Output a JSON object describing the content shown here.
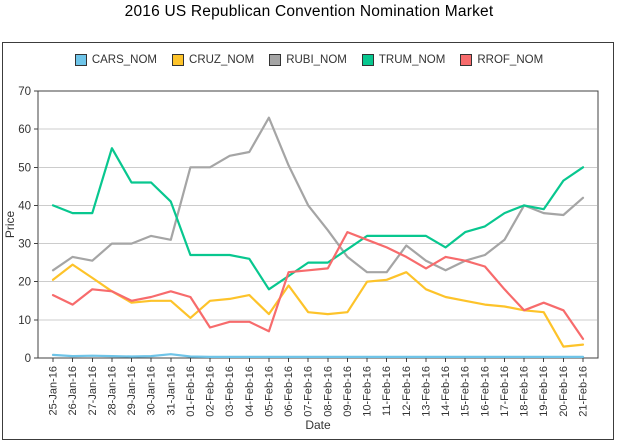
{
  "chart_data": {
    "type": "line",
    "title": "2016 US Republican Convention Nomination Market",
    "xlabel": "Date",
    "ylabel": "Price",
    "ylim": [
      0,
      70
    ],
    "ytick_step": 10,
    "grid": "horizontal",
    "legend_position": "top",
    "x_categories": [
      "25-Jan-16",
      "26-Jan-16",
      "27-Jan-16",
      "28-Jan-16",
      "29-Jan-16",
      "30-Jan-16",
      "31-Jan-16",
      "01-Feb-16",
      "02-Feb-16",
      "03-Feb-16",
      "04-Feb-16",
      "05-Feb-16",
      "06-Feb-16",
      "07-Feb-16",
      "08-Feb-16",
      "09-Feb-16",
      "10-Feb-16",
      "11-Feb-16",
      "12-Feb-16",
      "13-Feb-16",
      "14-Feb-16",
      "15-Feb-16",
      "16-Feb-16",
      "17-Feb-16",
      "18-Feb-16",
      "19-Feb-16",
      "20-Feb-16",
      "21-Feb-16"
    ],
    "series": [
      {
        "name": "CARS_NOM",
        "color": "#6ec4e8",
        "values": [
          0.8,
          0.5,
          0.6,
          0.5,
          0.4,
          0.5,
          1,
          0.4,
          0.3,
          0.3,
          0.3,
          0.3,
          0.3,
          0.3,
          0.3,
          0.3,
          0.3,
          0.3,
          0.3,
          0.3,
          0.3,
          0.3,
          0.3,
          0.3,
          0.3,
          0.3,
          0.3,
          0.3
        ]
      },
      {
        "name": "CRUZ_NOM",
        "color": "#fdc32a",
        "values": [
          20.5,
          24.5,
          21,
          17.5,
          14.5,
          15,
          15,
          10.5,
          15,
          15.5,
          16.5,
          11.5,
          19,
          12,
          11.5,
          12,
          20,
          20.5,
          22.5,
          18,
          16,
          15,
          14,
          13.5,
          12.5,
          12,
          3,
          3.5
        ]
      },
      {
        "name": "RUBI_NOM",
        "color": "#a5a5a5",
        "values": [
          23,
          26.5,
          25.5,
          30,
          30,
          32,
          31,
          50,
          50,
          53,
          54,
          63,
          50.5,
          40,
          33.5,
          26.5,
          22.5,
          22.5,
          29.5,
          25.5,
          23,
          25.5,
          27,
          31,
          40,
          38,
          37.5,
          42
        ]
      },
      {
        "name": "TRUM_NOM",
        "color": "#08c78f",
        "values": [
          40,
          38,
          38,
          55,
          46,
          46,
          41,
          27,
          27,
          27,
          26,
          18,
          21.5,
          25,
          25,
          28.5,
          32,
          32,
          32,
          32,
          29,
          33,
          34.5,
          38,
          40,
          39,
          46.5,
          50
        ]
      },
      {
        "name": "RROF_NOM",
        "color": "#f76b6c",
        "values": [
          16.5,
          14,
          18,
          17.5,
          15,
          16,
          17.5,
          16,
          8,
          9.5,
          9.5,
          7,
          22.5,
          23,
          23.5,
          33,
          31,
          29,
          26.5,
          23.5,
          26.5,
          25.5,
          24,
          18,
          12.5,
          14.5,
          12.5,
          5
        ]
      }
    ]
  },
  "colors": {
    "grid": "#cccccc",
    "plot_border": "#404040",
    "tick": "#404040",
    "tick_label": "#333333",
    "axis_title": "#333333"
  }
}
